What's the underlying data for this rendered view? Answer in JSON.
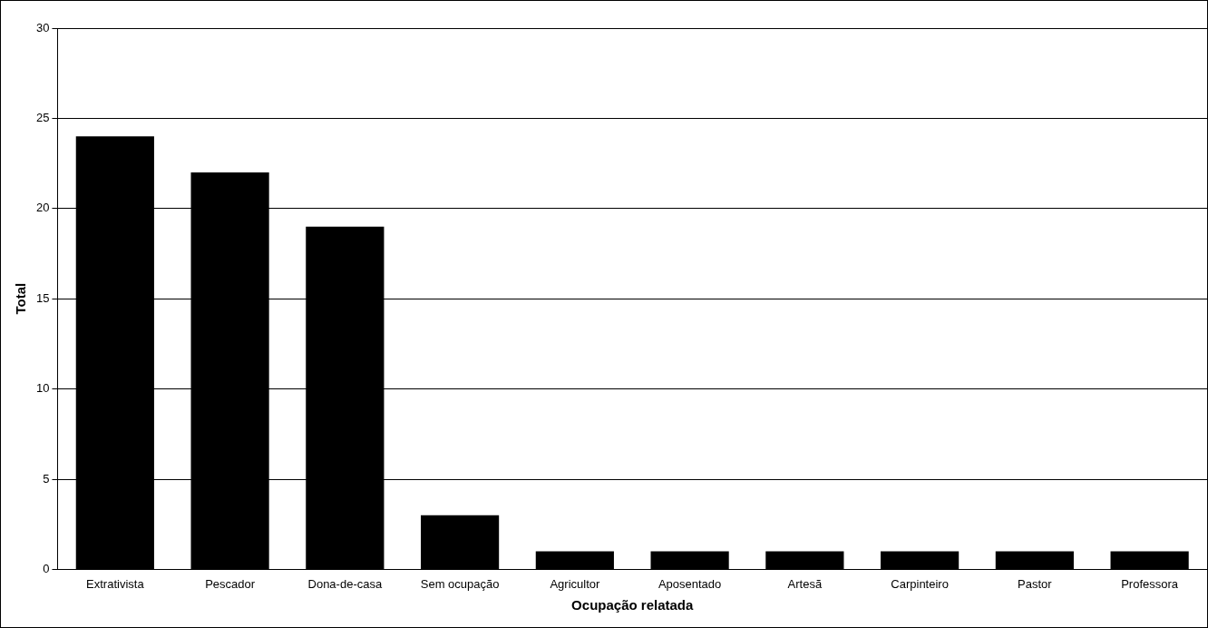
{
  "chart_data": {
    "type": "bar",
    "xlabel": "Ocupação relatada",
    "ylabel": "Total",
    "categories": [
      "Extrativista",
      "Pescador",
      "Dona-de-casa",
      "Sem ocupação",
      "Agricultor",
      "Aposentado",
      "Artesã",
      "Carpinteiro",
      "Pastor",
      "Professora"
    ],
    "values": [
      24,
      22,
      19,
      3,
      1,
      1,
      1,
      1,
      1,
      1
    ],
    "color": "#000000",
    "ylim": [
      0,
      30
    ],
    "yticks": [
      0,
      5,
      10,
      15,
      20,
      25,
      30
    ],
    "grid": "y",
    "legend": false
  }
}
